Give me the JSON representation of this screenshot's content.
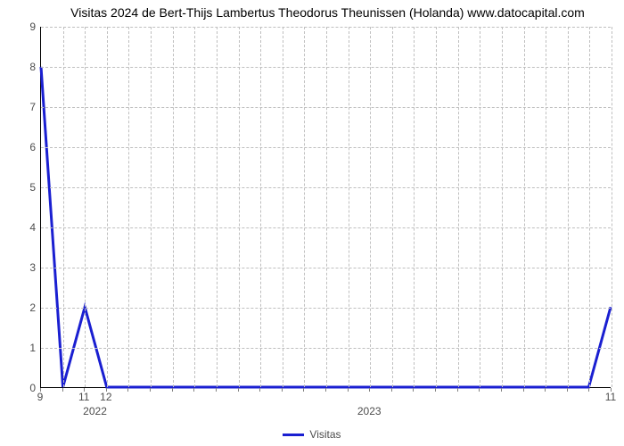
{
  "chart": {
    "type": "line",
    "title": "Visitas 2024 de Bert-Thijs Lambertus Theodorus Theunissen (Holanda) www.datocapital.com",
    "title_fontsize": 14,
    "title_color": "#000000",
    "background_color": "#ffffff",
    "grid_color": "#bfbfbf",
    "axis_color": "#000000",
    "tick_label_color": "#4d4d4d",
    "tick_fontsize": 12,
    "line_color": "#1a1fd1",
    "line_width": 3,
    "y": {
      "min": 0,
      "max": 9,
      "ticks": [
        0,
        1,
        2,
        3,
        4,
        5,
        6,
        7,
        8,
        9
      ]
    },
    "x": {
      "count": 27,
      "labeled_ticks": [
        {
          "idx": 0,
          "label": "9"
        },
        {
          "idx": 2,
          "label": "11"
        },
        {
          "idx": 3,
          "label": "12"
        },
        {
          "idx": 26,
          "label": "11"
        }
      ],
      "major_groups": [
        {
          "idx": 2.5,
          "label": "2022"
        },
        {
          "idx": 15,
          "label": "2023"
        }
      ]
    },
    "series": {
      "name": "Visitas",
      "y_values": [
        8,
        0,
        2,
        0,
        0,
        0,
        0,
        0,
        0,
        0,
        0,
        0,
        0,
        0,
        0,
        0,
        0,
        0,
        0,
        0,
        0,
        0,
        0,
        0,
        0,
        0,
        2
      ]
    },
    "legend": {
      "label": "Visitas",
      "swatch_color": "#1a1fd1"
    }
  }
}
